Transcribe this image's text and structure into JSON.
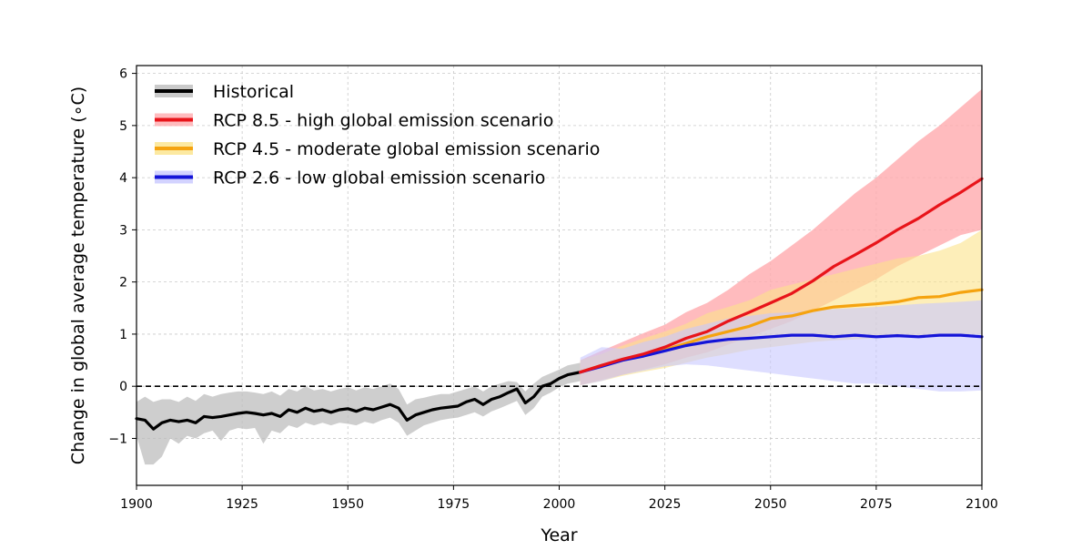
{
  "chart_data": {
    "type": "line",
    "title": "",
    "xlabel": "Year",
    "ylabel": "Change in global average temperature (∘C)",
    "xlim": [
      1900,
      2100
    ],
    "ylim": [
      -1.9,
      6.15
    ],
    "x_ticks": [
      1900,
      1925,
      1950,
      1975,
      2000,
      2025,
      2050,
      2075,
      2100
    ],
    "y_ticks": [
      -1,
      0,
      1,
      2,
      3,
      4,
      5,
      6
    ],
    "y_tick_labels": [
      "−1",
      "0",
      "1",
      "2",
      "3",
      "4",
      "5",
      "6"
    ],
    "grid": true,
    "legend_position": "top-left",
    "reference_line": {
      "y": 0,
      "style": "dashed",
      "color": "#000000"
    },
    "series": [
      {
        "name": "Historical",
        "key": "historical",
        "color": "#000000",
        "band_color": "#bdbdbd",
        "x": [
          1900,
          1902,
          1904,
          1906,
          1908,
          1910,
          1912,
          1914,
          1916,
          1918,
          1920,
          1922,
          1924,
          1926,
          1928,
          1930,
          1932,
          1934,
          1936,
          1938,
          1940,
          1942,
          1944,
          1946,
          1948,
          1950,
          1952,
          1954,
          1956,
          1958,
          1960,
          1962,
          1964,
          1966,
          1968,
          1970,
          1972,
          1974,
          1976,
          1978,
          1980,
          1982,
          1984,
          1986,
          1988,
          1990,
          1992,
          1994,
          1996,
          1998,
          2000,
          2002,
          2005
        ],
        "y": [
          -0.62,
          -0.65,
          -0.82,
          -0.7,
          -0.65,
          -0.68,
          -0.65,
          -0.7,
          -0.58,
          -0.6,
          -0.58,
          -0.55,
          -0.52,
          -0.5,
          -0.52,
          -0.55,
          -0.52,
          -0.58,
          -0.45,
          -0.5,
          -0.42,
          -0.48,
          -0.45,
          -0.5,
          -0.45,
          -0.43,
          -0.48,
          -0.42,
          -0.45,
          -0.4,
          -0.35,
          -0.42,
          -0.65,
          -0.55,
          -0.5,
          -0.45,
          -0.42,
          -0.4,
          -0.38,
          -0.3,
          -0.25,
          -0.35,
          -0.25,
          -0.2,
          -0.12,
          -0.05,
          -0.32,
          -0.2,
          0.0,
          0.05,
          0.15,
          0.22,
          0.27
        ],
        "band_low": [
          -0.95,
          -1.5,
          -1.5,
          -1.35,
          -1.0,
          -1.1,
          -0.95,
          -1.0,
          -0.9,
          -0.85,
          -1.05,
          -0.85,
          -0.8,
          -0.82,
          -0.8,
          -1.1,
          -0.85,
          -0.9,
          -0.75,
          -0.8,
          -0.7,
          -0.75,
          -0.7,
          -0.75,
          -0.7,
          -0.72,
          -0.75,
          -0.68,
          -0.72,
          -0.65,
          -0.6,
          -0.7,
          -0.95,
          -0.85,
          -0.75,
          -0.7,
          -0.65,
          -0.62,
          -0.6,
          -0.55,
          -0.5,
          -0.58,
          -0.48,
          -0.42,
          -0.35,
          -0.28,
          -0.55,
          -0.42,
          -0.2,
          -0.12,
          -0.02,
          0.05,
          0.1
        ],
        "band_high": [
          -0.3,
          -0.2,
          -0.3,
          -0.25,
          -0.25,
          -0.3,
          -0.2,
          -0.28,
          -0.15,
          -0.2,
          -0.15,
          -0.12,
          -0.1,
          -0.1,
          -0.12,
          -0.15,
          -0.1,
          -0.18,
          -0.05,
          -0.1,
          0.0,
          -0.08,
          -0.05,
          -0.1,
          -0.05,
          -0.02,
          -0.08,
          -0.02,
          -0.05,
          0.0,
          0.05,
          -0.05,
          -0.35,
          -0.25,
          -0.22,
          -0.18,
          -0.15,
          -0.15,
          -0.1,
          -0.05,
          0.0,
          -0.1,
          0.0,
          0.05,
          0.1,
          0.08,
          -0.1,
          0.05,
          0.18,
          0.25,
          0.32,
          0.4,
          0.45
        ]
      },
      {
        "name": "RCP 8.5 - high global emission scenario",
        "key": "rcp85",
        "color": "#e8141a",
        "band_color": "#ffaaae",
        "x": [
          2005,
          2010,
          2015,
          2020,
          2025,
          2030,
          2035,
          2040,
          2045,
          2050,
          2055,
          2060,
          2065,
          2070,
          2075,
          2080,
          2085,
          2090,
          2095,
          2100
        ],
        "y": [
          0.27,
          0.4,
          0.52,
          0.62,
          0.75,
          0.92,
          1.05,
          1.25,
          1.42,
          1.6,
          1.78,
          2.02,
          2.3,
          2.52,
          2.75,
          3.0,
          3.22,
          3.48,
          3.72,
          3.98
        ],
        "band_low": [
          0.02,
          0.12,
          0.22,
          0.32,
          0.42,
          0.55,
          0.65,
          0.8,
          0.95,
          1.1,
          1.25,
          1.45,
          1.65,
          1.85,
          2.05,
          2.3,
          2.5,
          2.7,
          2.9,
          3.0
        ],
        "band_high": [
          0.5,
          0.68,
          0.85,
          1.02,
          1.18,
          1.42,
          1.6,
          1.85,
          2.15,
          2.4,
          2.7,
          3.0,
          3.35,
          3.7,
          4.0,
          4.35,
          4.7,
          5.0,
          5.35,
          5.7
        ]
      },
      {
        "name": "RCP 4.5 - moderate global emission scenario",
        "key": "rcp45",
        "color": "#f5a30f",
        "band_color": "#fbe38a",
        "x": [
          2005,
          2010,
          2015,
          2020,
          2025,
          2030,
          2035,
          2040,
          2045,
          2050,
          2055,
          2060,
          2065,
          2070,
          2075,
          2080,
          2085,
          2090,
          2095,
          2100
        ],
        "y": [
          0.27,
          0.4,
          0.5,
          0.6,
          0.7,
          0.82,
          0.95,
          1.05,
          1.15,
          1.3,
          1.35,
          1.45,
          1.52,
          1.55,
          1.58,
          1.62,
          1.7,
          1.72,
          1.8,
          1.85
        ],
        "band_low": [
          0.02,
          0.1,
          0.2,
          0.28,
          0.35,
          0.45,
          0.55,
          0.62,
          0.7,
          0.75,
          0.8,
          0.85,
          0.88,
          0.9,
          0.92,
          0.95,
          0.95,
          0.98,
          1.0,
          1.0
        ],
        "band_high": [
          0.5,
          0.62,
          0.78,
          0.92,
          1.05,
          1.2,
          1.4,
          1.52,
          1.65,
          1.85,
          1.95,
          2.05,
          2.15,
          2.25,
          2.35,
          2.45,
          2.5,
          2.6,
          2.75,
          3.0
        ]
      },
      {
        "name": "RCP 2.6 - low global emission scenario",
        "key": "rcp26",
        "color": "#1414d8",
        "band_color": "#c8c8ff",
        "x": [
          2005,
          2010,
          2015,
          2020,
          2025,
          2030,
          2035,
          2040,
          2045,
          2050,
          2055,
          2060,
          2065,
          2070,
          2075,
          2080,
          2085,
          2090,
          2095,
          2100
        ],
        "y": [
          0.27,
          0.38,
          0.5,
          0.58,
          0.68,
          0.78,
          0.85,
          0.9,
          0.92,
          0.95,
          0.98,
          0.98,
          0.95,
          0.98,
          0.95,
          0.97,
          0.95,
          0.98,
          0.98,
          0.95
        ],
        "band_low": [
          0.02,
          0.1,
          0.22,
          0.3,
          0.38,
          0.42,
          0.4,
          0.35,
          0.3,
          0.25,
          0.2,
          0.15,
          0.1,
          0.05,
          0.05,
          0.0,
          -0.05,
          -0.1,
          -0.1,
          -0.08
        ],
        "band_high": [
          0.55,
          0.75,
          0.72,
          0.85,
          0.95,
          1.1,
          1.2,
          1.3,
          1.35,
          1.4,
          1.42,
          1.45,
          1.48,
          1.5,
          1.52,
          1.55,
          1.58,
          1.6,
          1.62,
          1.65
        ]
      }
    ]
  }
}
